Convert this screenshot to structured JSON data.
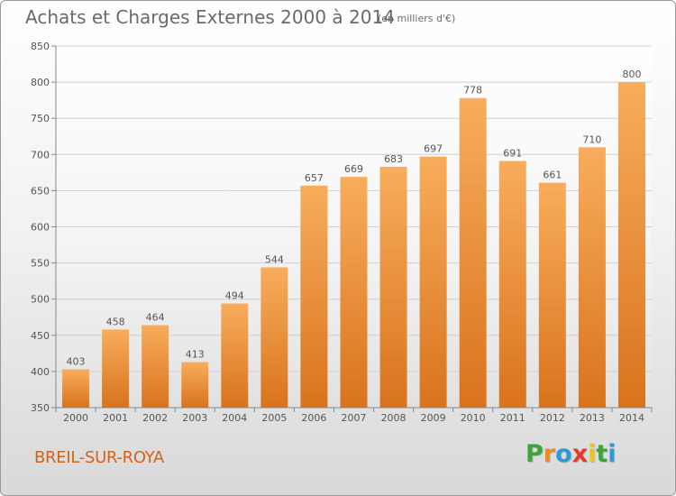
{
  "header": {
    "title": "Achats et Charges Externes 2000 à 2014",
    "subtitle": "(en milliers d'€)"
  },
  "footer": {
    "commune": "BREIL-SUR-ROYA",
    "logo_letters": [
      "P",
      "r",
      "o",
      "x",
      "i",
      "t",
      "i"
    ],
    "logo_colors": [
      "#3aa63a",
      "#f08a1c",
      "#2d9ad6",
      "#e53a2a",
      "#f0c21c",
      "#3aa63a",
      "#2d9ad6"
    ]
  },
  "colors": {
    "bar_top": "#f8ad5c",
    "bar_bottom": "#d9731d",
    "text": "#555555",
    "grid": "#d0d0d0",
    "axis": "#888888",
    "commune": "#d0641a"
  },
  "chart_data": {
    "type": "bar",
    "categories": [
      "2000",
      "2001",
      "2002",
      "2003",
      "2004",
      "2005",
      "2006",
      "2007",
      "2008",
      "2009",
      "2010",
      "2011",
      "2012",
      "2013",
      "2014"
    ],
    "values": [
      403,
      458,
      464,
      413,
      494,
      544,
      657,
      669,
      683,
      697,
      778,
      691,
      661,
      710,
      800
    ],
    "data_labels": [
      "403",
      "458",
      "464",
      "413",
      "494",
      "544",
      "657",
      "669",
      "683",
      "697",
      "778",
      "691",
      "661",
      "710",
      "800"
    ],
    "title": "Achats et Charges Externes 2000 à 2014",
    "xlabel": "",
    "ylabel": "",
    "ylim": [
      350,
      850
    ],
    "yticks": [
      350,
      400,
      450,
      500,
      550,
      600,
      650,
      700,
      750,
      800,
      850
    ],
    "grid": true,
    "legend": "none"
  }
}
